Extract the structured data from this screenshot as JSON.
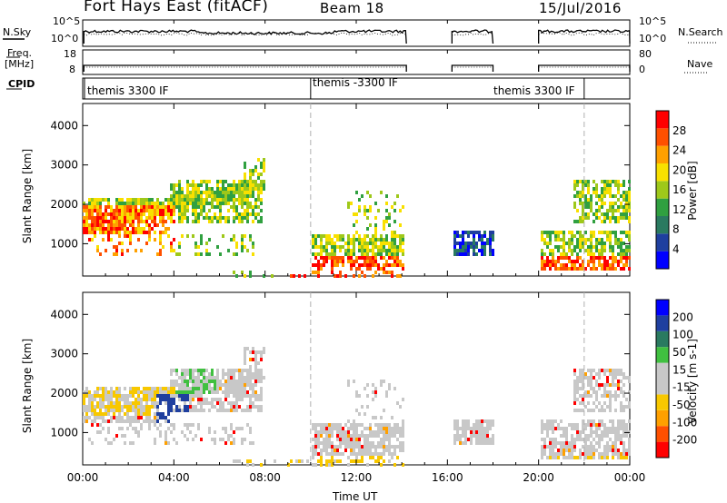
{
  "header": {
    "station": "Fort Hays East (fitACF)",
    "beam": "Beam 18",
    "date": "15/Jul/2016"
  },
  "strip_labels": {
    "nsky": "N.Sky",
    "freq_line1": "Freq.",
    "freq_line2": "[MHz]",
    "cpid": "CPID",
    "nsearch": "N.Search",
    "nave": "Nave",
    "nsky_ticks": [
      "10^5",
      "10^0"
    ],
    "nsearch_ticks": [
      "10^5",
      "10^0"
    ],
    "freq_ticks": [
      "18",
      "8"
    ],
    "nave_ticks": [
      "80",
      "0"
    ]
  },
  "cpid_labels": [
    {
      "text": "themis 3300 IF",
      "start_hour": 0.0
    },
    {
      "text": "themis -3300 IF",
      "start_hour": 10.0
    },
    {
      "text": "themis 3300 IF",
      "start_hour": 22.0
    }
  ],
  "colors": {
    "power_scale": [
      "#0000ff",
      "#1f3f9f",
      "#2a7a60",
      "#30a040",
      "#9ec81a",
      "#f8e000",
      "#ffa000",
      "#ff5000",
      "#ff0000"
    ],
    "velocity_scale": [
      "#ff0000",
      "#ff5000",
      "#ffa000",
      "#f8c800",
      "#c8c8c8",
      "#c8c8c8",
      "#40c040",
      "#2a7a60",
      "#1f3f9f",
      "#0000ff"
    ]
  },
  "chart_data": [
    {
      "type": "heatmap",
      "name": "power",
      "xlabel": "Time UT",
      "ylabel": "Slant Range [km]",
      "x_ticks": [
        "00:00",
        "04:00",
        "08:00",
        "12:00",
        "16:00",
        "20:00",
        "00:00"
      ],
      "x_range_hours": [
        0,
        24
      ],
      "y_ticks": [
        1000,
        2000,
        3000,
        4000
      ],
      "y_range_km": [
        180,
        4560
      ],
      "colorbar_label": "Power [dB]",
      "colorbar_ticks": [
        4,
        8,
        12,
        16,
        20,
        24,
        28
      ],
      "colorbar_range": [
        0,
        30
      ],
      "data_gaps_hours": [
        [
          14.2,
          16.2
        ],
        [
          18.0,
          20.0
        ]
      ],
      "dashed_lines_hours": [
        10.0,
        22.0
      ]
    },
    {
      "type": "heatmap",
      "name": "velocity",
      "xlabel": "Time UT",
      "ylabel": "Slant Range [km]",
      "x_ticks": [
        "00:00",
        "04:00",
        "08:00",
        "12:00",
        "16:00",
        "20:00",
        "00:00"
      ],
      "x_range_hours": [
        0,
        24
      ],
      "y_ticks": [
        1000,
        2000,
        3000,
        4000
      ],
      "y_range_km": [
        180,
        4560
      ],
      "colorbar_label": "Velocity [m s-1]",
      "colorbar_ticks": [
        -200,
        -100,
        -50,
        -15,
        15,
        50,
        100,
        200
      ],
      "data_gaps_hours": [
        [
          14.2,
          16.2
        ],
        [
          18.0,
          20.0
        ]
      ],
      "dashed_lines_hours": [
        10.0,
        22.0
      ]
    }
  ]
}
